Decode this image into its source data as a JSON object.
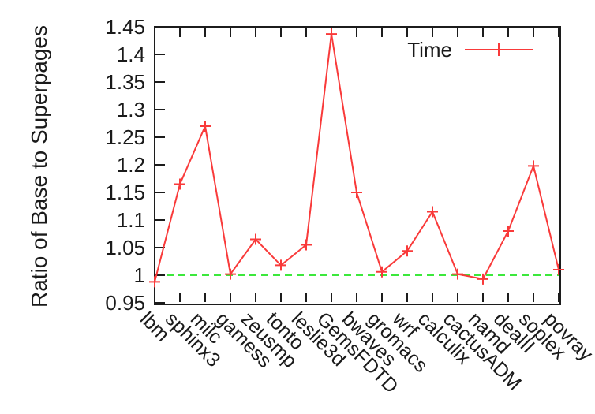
{
  "figure": {
    "background": "#ffffff",
    "y_axis_title": "Ratio of Base to Superpages"
  },
  "chart_data": {
    "type": "line",
    "title": "",
    "xlabel": "",
    "ylabel": "Ratio of Base to Superpages",
    "ylim": [
      0.95,
      1.45
    ],
    "ytick_step": 0.05,
    "ytick_labels": [
      "0.95",
      "1",
      "1.05",
      "1.1",
      "1.15",
      "1.2",
      "1.25",
      "1.3",
      "1.35",
      "1.4",
      "1.45"
    ],
    "grid": false,
    "legend_position": "top-right-inside",
    "axis_color": "#1c1c1c",
    "baseline": {
      "value": 1.0,
      "color": "#3ce83c",
      "style": "dashed"
    },
    "categories": [
      "lbm",
      "sphinx3",
      "milc",
      "gamess",
      "zeusmp",
      "tonto",
      "leslie3d",
      "GemsFDTD",
      "bwaves",
      "gromacs",
      "wrf",
      "calculix",
      "cactusADM",
      "namd",
      "dealII",
      "soplex",
      "povray"
    ],
    "series": [
      {
        "name": "Time",
        "color": "#f93a3a",
        "marker": "plus",
        "values": [
          0.988,
          1.165,
          1.27,
          1.002,
          1.065,
          1.018,
          1.055,
          1.437,
          1.15,
          1.006,
          1.044,
          1.115,
          1.002,
          0.993,
          1.08,
          1.198,
          1.01
        ]
      }
    ]
  }
}
